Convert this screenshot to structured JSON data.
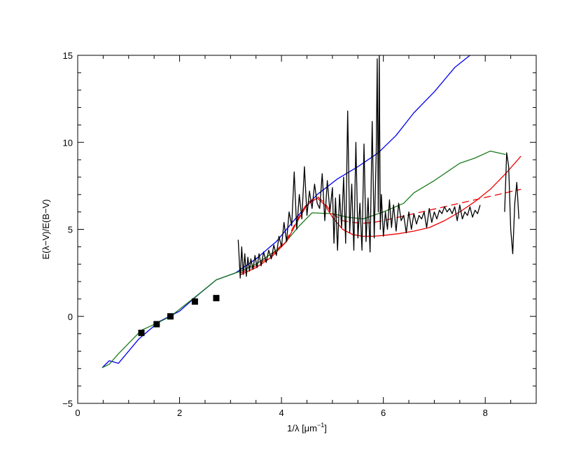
{
  "chart_data": {
    "type": "line",
    "title": "",
    "xlabel": {
      "prefix": "1/λ [μm",
      "sup": "−1",
      "suffix": "]"
    },
    "ylabel": "E(λ−V)/E(B−V)",
    "xlim": [
      0,
      9
    ],
    "ylim": [
      -5,
      15
    ],
    "x_ticks": [
      {
        "value": 0,
        "label": "0"
      },
      {
        "value": 2,
        "label": "2"
      },
      {
        "value": 4,
        "label": "4"
      },
      {
        "value": 6,
        "label": "6"
      },
      {
        "value": 8,
        "label": "8"
      }
    ],
    "y_ticks": [
      {
        "value": -5,
        "label": "−5"
      },
      {
        "value": 0,
        "label": "0"
      },
      {
        "value": 5,
        "label": "5"
      },
      {
        "value": 10,
        "label": "10"
      },
      {
        "value": 15,
        "label": "15"
      }
    ],
    "grid": false,
    "legend": "none",
    "series": [
      {
        "style": "line",
        "color": "#0000ee",
        "dash": "",
        "x": [
          0.48,
          0.62,
          0.8,
          1.2,
          1.6,
          2.0,
          2.35,
          2.72,
          3.1,
          3.5,
          3.9,
          4.3,
          4.7,
          5.1,
          5.5,
          5.9,
          6.25,
          6.6,
          7.0,
          7.4,
          7.7
        ],
        "y": [
          -2.95,
          -2.55,
          -2.7,
          -1.3,
          -0.3,
          0.3,
          1.2,
          2.1,
          2.5,
          3.3,
          4.3,
          5.7,
          7.0,
          7.9,
          8.6,
          9.4,
          10.4,
          11.7,
          12.9,
          14.3,
          15.0
        ]
      },
      {
        "style": "line",
        "color": "#1a7a1a",
        "dash": "",
        "x": [
          0.48,
          0.62,
          0.8,
          1.25,
          1.55,
          1.82,
          2.3,
          2.72,
          3.2,
          3.5,
          4.0,
          4.35,
          4.6,
          5.0,
          5.3,
          5.6,
          6.0,
          6.4,
          6.6,
          7.0,
          7.5,
          7.8,
          8.1,
          8.4
        ],
        "y": [
          -2.95,
          -2.75,
          -2.15,
          -0.8,
          -0.4,
          0.0,
          1.1,
          2.1,
          2.6,
          3.0,
          4.0,
          5.2,
          5.95,
          5.9,
          5.7,
          5.6,
          6.0,
          6.5,
          7.1,
          7.8,
          8.8,
          9.1,
          9.5,
          9.3
        ]
      },
      {
        "style": "line",
        "color": "#ee0000",
        "dash": "",
        "x": [
          3.2,
          3.5,
          3.8,
          4.1,
          4.3,
          4.5,
          4.7,
          4.85,
          5.0,
          5.2,
          5.4,
          5.6,
          5.8,
          6.0,
          6.3,
          6.6,
          6.9,
          7.2,
          7.5,
          7.8,
          8.1,
          8.4,
          8.7
        ],
        "y": [
          2.4,
          2.8,
          3.4,
          4.3,
          5.4,
          6.4,
          6.8,
          6.4,
          5.7,
          5.0,
          4.7,
          4.6,
          4.6,
          4.65,
          4.75,
          4.9,
          5.1,
          5.5,
          6.0,
          6.6,
          7.3,
          8.2,
          9.2
        ]
      },
      {
        "style": "line",
        "color": "#ee0000",
        "dash": "10,6",
        "x": [
          3.2,
          3.5,
          3.8,
          4.1,
          4.3,
          4.5,
          4.7,
          4.85,
          5.0,
          5.2,
          5.4,
          5.6,
          5.8,
          6.0,
          6.3,
          6.6,
          6.9,
          7.2,
          7.5,
          7.8,
          8.1,
          8.4,
          8.7
        ],
        "y": [
          2.5,
          2.9,
          3.5,
          4.4,
          5.5,
          6.5,
          6.9,
          6.5,
          5.9,
          5.5,
          5.4,
          5.35,
          5.4,
          5.5,
          5.7,
          5.9,
          6.1,
          6.3,
          6.5,
          6.7,
          6.9,
          7.1,
          7.3
        ]
      },
      {
        "style": "line",
        "color": "#000000",
        "dash": "",
        "x": [
          3.15,
          3.19,
          3.22,
          3.25,
          3.28,
          3.31,
          3.34,
          3.37,
          3.4,
          3.44,
          3.48,
          3.52,
          3.56,
          3.6,
          3.65,
          3.7,
          3.75,
          3.8,
          3.85,
          3.9,
          3.95,
          4.0,
          4.05,
          4.1,
          4.15,
          4.2,
          4.25,
          4.3,
          4.35,
          4.4,
          4.45,
          4.5,
          4.55,
          4.6,
          4.65,
          4.7,
          4.75,
          4.8,
          4.85,
          4.9,
          4.95,
          5.0,
          5.03,
          5.06,
          5.1,
          5.14,
          5.18,
          5.22,
          5.26,
          5.3,
          5.34,
          5.38,
          5.42,
          5.46,
          5.5,
          5.54,
          5.58,
          5.62,
          5.66,
          5.7,
          5.74,
          5.78,
          5.82,
          5.86,
          5.88,
          5.9,
          5.92,
          5.94,
          5.96,
          6.0,
          6.04,
          6.08,
          6.12,
          6.16,
          6.2,
          6.25,
          6.3,
          6.35,
          6.4,
          6.45,
          6.5,
          6.55,
          6.6,
          6.65,
          6.7,
          6.75,
          6.8,
          6.85,
          6.9,
          6.95,
          7.0,
          7.05,
          7.1,
          7.15,
          7.2,
          7.25,
          7.3,
          7.35,
          7.4,
          7.45,
          7.5,
          7.55,
          7.6,
          7.65,
          7.7,
          7.75,
          7.8,
          7.85,
          7.9
        ],
        "y": [
          4.4,
          2.2,
          4.0,
          2.4,
          3.6,
          2.3,
          3.4,
          2.6,
          3.3,
          2.7,
          3.5,
          2.8,
          3.6,
          2.9,
          3.7,
          3.1,
          3.8,
          3.3,
          4.1,
          3.5,
          4.6,
          4.0,
          5.4,
          4.3,
          6.0,
          5.2,
          8.3,
          5.0,
          7.0,
          5.6,
          8.6,
          5.8,
          7.2,
          6.2,
          7.6,
          6.5,
          6.2,
          8.2,
          5.5,
          7.8,
          6.0,
          7.4,
          4.2,
          6.8,
          3.8,
          7.0,
          5.1,
          8.0,
          4.2,
          11.8,
          4.8,
          7.6,
          3.8,
          10.0,
          4.5,
          6.5,
          3.8,
          9.9,
          4.3,
          6.8,
          3.7,
          11.2,
          4.5,
          9.5,
          14.8,
          6.0,
          15.0,
          5.0,
          7.0,
          4.6,
          6.0,
          5.0,
          6.7,
          5.1,
          6.4,
          4.9,
          6.5,
          5.5,
          5.8,
          4.8,
          6.0,
          5.0,
          5.9,
          5.3,
          5.8,
          5.6,
          6.0,
          5.1,
          6.2,
          5.4,
          6.0,
          5.6,
          6.1,
          5.9,
          6.3,
          6.0,
          6.2,
          5.9,
          6.3,
          5.5,
          6.4,
          5.6,
          6.0,
          5.8,
          6.3,
          5.7,
          6.1,
          5.9,
          6.4
        ]
      },
      {
        "style": "line",
        "color": "#000000",
        "dash": "",
        "x": [
          8.38,
          8.42,
          8.46,
          8.5,
          8.54,
          8.58,
          8.62,
          8.66
        ],
        "y": [
          6.0,
          9.4,
          8.6,
          5.0,
          3.6,
          6.5,
          7.7,
          5.6
        ]
      }
    ],
    "points": {
      "marker": "square",
      "color": "#000000",
      "x": [
        1.25,
        1.55,
        1.82,
        2.3,
        2.72
      ],
      "y": [
        -0.95,
        -0.45,
        0.0,
        0.85,
        1.05
      ]
    }
  }
}
